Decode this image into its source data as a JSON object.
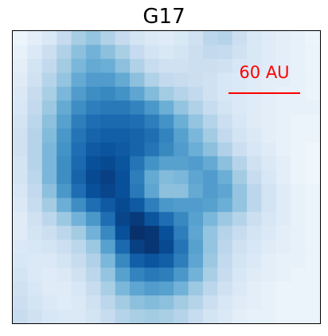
{
  "panel": {
    "title": "G17"
  },
  "scale_bar": {
    "label": "60 AU",
    "color": "#ff0000"
  },
  "image": {
    "colormap": "blues",
    "frame_color": "#000000",
    "cols": 21,
    "rows": 21,
    "intensity": [
      [
        0.05,
        0.1,
        0.15,
        0.25,
        0.35,
        0.4,
        0.32,
        0.25,
        0.18,
        0.14,
        0.12,
        0.15,
        0.2,
        0.28,
        0.3,
        0.22,
        0.15,
        0.12,
        0.1,
        0.08,
        0.05
      ],
      [
        0.08,
        0.14,
        0.22,
        0.32,
        0.42,
        0.48,
        0.42,
        0.34,
        0.25,
        0.18,
        0.15,
        0.18,
        0.22,
        0.26,
        0.25,
        0.2,
        0.15,
        0.12,
        0.1,
        0.08,
        0.06
      ],
      [
        0.1,
        0.18,
        0.26,
        0.36,
        0.46,
        0.52,
        0.5,
        0.42,
        0.32,
        0.24,
        0.2,
        0.2,
        0.22,
        0.22,
        0.2,
        0.16,
        0.14,
        0.12,
        0.1,
        0.08,
        0.06
      ],
      [
        0.12,
        0.2,
        0.3,
        0.4,
        0.52,
        0.58,
        0.58,
        0.52,
        0.42,
        0.32,
        0.26,
        0.24,
        0.22,
        0.2,
        0.16,
        0.14,
        0.12,
        0.1,
        0.1,
        0.08,
        0.06
      ],
      [
        0.14,
        0.24,
        0.34,
        0.46,
        0.58,
        0.64,
        0.66,
        0.62,
        0.54,
        0.44,
        0.36,
        0.3,
        0.26,
        0.2,
        0.16,
        0.14,
        0.12,
        0.1,
        0.08,
        0.08,
        0.06
      ],
      [
        0.16,
        0.26,
        0.38,
        0.52,
        0.64,
        0.7,
        0.72,
        0.72,
        0.68,
        0.6,
        0.5,
        0.4,
        0.32,
        0.24,
        0.18,
        0.14,
        0.12,
        0.1,
        0.08,
        0.08,
        0.08
      ],
      [
        0.18,
        0.28,
        0.42,
        0.56,
        0.7,
        0.76,
        0.78,
        0.78,
        0.76,
        0.7,
        0.62,
        0.5,
        0.4,
        0.3,
        0.22,
        0.16,
        0.12,
        0.1,
        0.08,
        0.06,
        0.06
      ],
      [
        0.2,
        0.3,
        0.44,
        0.6,
        0.74,
        0.8,
        0.82,
        0.82,
        0.8,
        0.76,
        0.68,
        0.56,
        0.46,
        0.36,
        0.26,
        0.18,
        0.14,
        0.1,
        0.08,
        0.06,
        0.06
      ],
      [
        0.2,
        0.3,
        0.46,
        0.62,
        0.76,
        0.84,
        0.86,
        0.84,
        0.8,
        0.74,
        0.66,
        0.58,
        0.5,
        0.42,
        0.32,
        0.22,
        0.16,
        0.12,
        0.08,
        0.06,
        0.04
      ],
      [
        0.18,
        0.3,
        0.46,
        0.64,
        0.78,
        0.88,
        0.9,
        0.86,
        0.74,
        0.62,
        0.56,
        0.56,
        0.58,
        0.52,
        0.42,
        0.3,
        0.2,
        0.14,
        0.1,
        0.06,
        0.04
      ],
      [
        0.18,
        0.28,
        0.46,
        0.64,
        0.8,
        0.9,
        0.94,
        0.88,
        0.7,
        0.52,
        0.44,
        0.46,
        0.54,
        0.58,
        0.5,
        0.36,
        0.24,
        0.16,
        0.1,
        0.06,
        0.04
      ],
      [
        0.16,
        0.26,
        0.42,
        0.6,
        0.76,
        0.88,
        0.92,
        0.88,
        0.72,
        0.54,
        0.42,
        0.42,
        0.52,
        0.58,
        0.54,
        0.4,
        0.28,
        0.18,
        0.12,
        0.08,
        0.06
      ],
      [
        0.14,
        0.24,
        0.36,
        0.5,
        0.64,
        0.76,
        0.84,
        0.9,
        0.84,
        0.7,
        0.6,
        0.58,
        0.58,
        0.56,
        0.5,
        0.4,
        0.28,
        0.18,
        0.12,
        0.08,
        0.06
      ],
      [
        0.12,
        0.2,
        0.28,
        0.38,
        0.48,
        0.6,
        0.76,
        0.92,
        0.96,
        0.86,
        0.76,
        0.66,
        0.56,
        0.46,
        0.38,
        0.3,
        0.22,
        0.16,
        0.12,
        0.08,
        0.06
      ],
      [
        0.12,
        0.18,
        0.22,
        0.28,
        0.36,
        0.48,
        0.66,
        0.88,
        1.0,
        0.98,
        0.88,
        0.7,
        0.54,
        0.4,
        0.3,
        0.24,
        0.18,
        0.14,
        0.1,
        0.08,
        0.06
      ],
      [
        0.14,
        0.16,
        0.18,
        0.22,
        0.28,
        0.38,
        0.56,
        0.78,
        0.94,
        0.98,
        0.9,
        0.74,
        0.56,
        0.4,
        0.28,
        0.2,
        0.16,
        0.12,
        0.1,
        0.08,
        0.06
      ],
      [
        0.16,
        0.14,
        0.14,
        0.18,
        0.24,
        0.32,
        0.46,
        0.66,
        0.82,
        0.86,
        0.82,
        0.7,
        0.54,
        0.38,
        0.26,
        0.18,
        0.14,
        0.1,
        0.08,
        0.08,
        0.06
      ],
      [
        0.18,
        0.14,
        0.12,
        0.14,
        0.2,
        0.28,
        0.4,
        0.56,
        0.68,
        0.72,
        0.7,
        0.6,
        0.48,
        0.34,
        0.24,
        0.16,
        0.12,
        0.1,
        0.08,
        0.06,
        0.06
      ],
      [
        0.2,
        0.16,
        0.12,
        0.12,
        0.16,
        0.24,
        0.34,
        0.46,
        0.54,
        0.58,
        0.56,
        0.48,
        0.38,
        0.28,
        0.2,
        0.14,
        0.1,
        0.08,
        0.06,
        0.06,
        0.06
      ],
      [
        0.22,
        0.18,
        0.14,
        0.12,
        0.14,
        0.2,
        0.28,
        0.36,
        0.42,
        0.44,
        0.42,
        0.36,
        0.3,
        0.22,
        0.16,
        0.12,
        0.1,
        0.08,
        0.06,
        0.06,
        0.06
      ],
      [
        0.24,
        0.2,
        0.16,
        0.14,
        0.14,
        0.18,
        0.24,
        0.3,
        0.34,
        0.36,
        0.34,
        0.3,
        0.24,
        0.18,
        0.14,
        0.1,
        0.08,
        0.08,
        0.06,
        0.06,
        0.06
      ]
    ]
  }
}
